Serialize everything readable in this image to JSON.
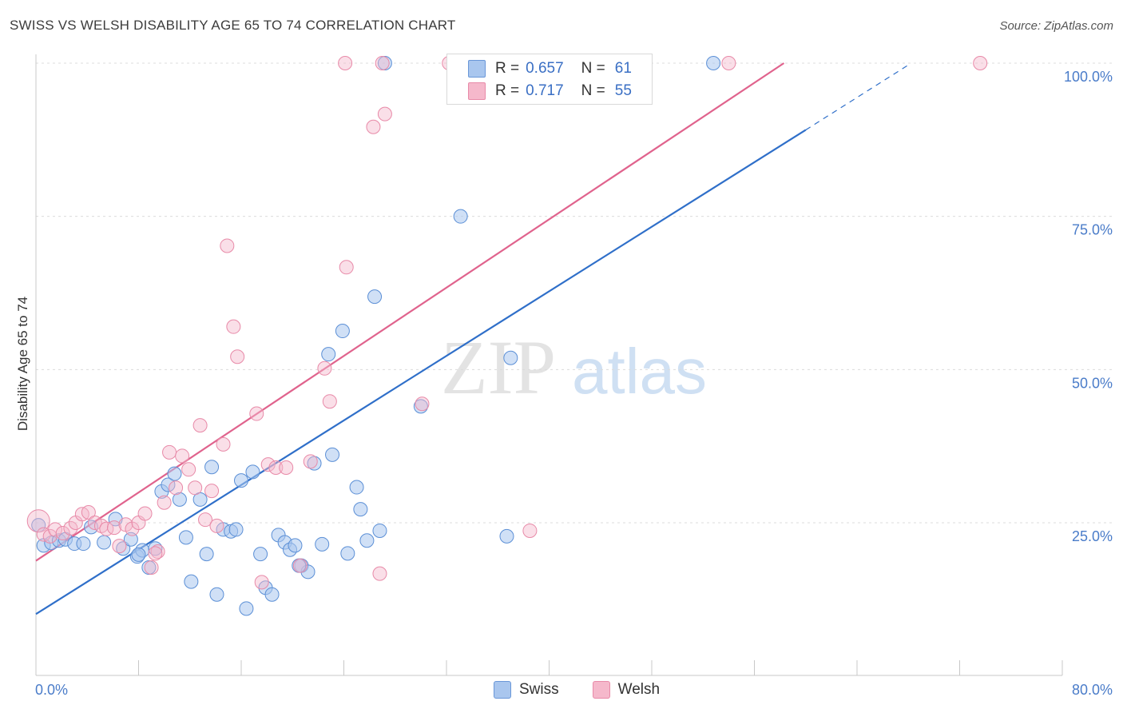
{
  "title": "SWISS VS WELSH DISABILITY AGE 65 TO 74 CORRELATION CHART",
  "source": "Source: ZipAtlas.com",
  "watermark": {
    "zip": "ZIP",
    "atlas": "atlas"
  },
  "legend_top": {
    "rows": [
      {
        "r_label": "R =",
        "r_value": "0.657",
        "n_label": "N =",
        "n_value": "61",
        "color": "#a9c6ee"
      },
      {
        "r_label": "R =",
        "r_value": "0.717",
        "n_label": "N =",
        "n_value": "55",
        "color": "#f5b8cb"
      }
    ]
  },
  "legend_bottom": {
    "swiss": "Swiss",
    "welsh": "Welsh"
  },
  "chart_data": {
    "type": "scatter",
    "title": "SWISS VS WELSH DISABILITY AGE 65 TO 74 CORRELATION CHART",
    "xlabel": "",
    "ylabel": "Disability Age 65 to 74",
    "xlim": [
      0,
      80
    ],
    "ylim": [
      0,
      105
    ],
    "x_tick_labels": [
      "0.0%",
      "80.0%"
    ],
    "y_tick_labels": [
      "25.0%",
      "50.0%",
      "75.0%",
      "100.0%"
    ],
    "y_ticks": [
      25,
      50,
      75,
      100
    ],
    "grid": true,
    "legend_position": "bottom",
    "colors": {
      "swiss_fill": "#a9c6ee",
      "swiss_line": "#2f6fc9",
      "welsh_fill": "#f5b8cb",
      "welsh_line": "#e0638d"
    },
    "series": [
      {
        "name": "Swiss",
        "trend": {
          "x1": 0,
          "y1": 10.1,
          "x2": 60,
          "y2": 89.1,
          "dash_to_x": 68,
          "dash_to_y": 99.7
        },
        "points": [
          [
            0.2,
            24.6
          ],
          [
            0.6,
            21.3
          ],
          [
            1.2,
            21.7
          ],
          [
            1.8,
            22.1
          ],
          [
            2.3,
            22.3
          ],
          [
            3.0,
            21.6
          ],
          [
            3.7,
            21.6
          ],
          [
            4.3,
            24.3
          ],
          [
            5.3,
            21.8
          ],
          [
            6.2,
            25.6
          ],
          [
            6.8,
            20.8
          ],
          [
            7.4,
            22.3
          ],
          [
            7.9,
            19.5
          ],
          [
            8.3,
            20.5
          ],
          [
            8.8,
            17.7
          ],
          [
            9.3,
            20.8
          ],
          [
            9.8,
            30.1
          ],
          [
            10.3,
            31.2
          ],
          [
            10.8,
            33.0
          ],
          [
            11.2,
            28.8
          ],
          [
            11.7,
            22.6
          ],
          [
            12.1,
            15.4
          ],
          [
            12.8,
            28.8
          ],
          [
            13.3,
            19.9
          ],
          [
            13.7,
            34.1
          ],
          [
            14.1,
            13.3
          ],
          [
            14.6,
            23.9
          ],
          [
            15.2,
            23.6
          ],
          [
            15.6,
            23.9
          ],
          [
            16.0,
            31.9
          ],
          [
            16.4,
            11.0
          ],
          [
            16.9,
            33.3
          ],
          [
            17.5,
            19.9
          ],
          [
            17.9,
            14.4
          ],
          [
            18.4,
            13.3
          ],
          [
            18.9,
            23.0
          ],
          [
            19.4,
            21.8
          ],
          [
            19.8,
            20.6
          ],
          [
            20.2,
            21.3
          ],
          [
            20.7,
            18.0
          ],
          [
            21.2,
            17.0
          ],
          [
            21.7,
            34.7
          ],
          [
            22.3,
            21.5
          ],
          [
            22.8,
            52.5
          ],
          [
            23.1,
            36.1
          ],
          [
            23.9,
            56.3
          ],
          [
            24.3,
            20.0
          ],
          [
            25.0,
            30.8
          ],
          [
            25.3,
            27.2
          ],
          [
            25.8,
            22.1
          ],
          [
            26.4,
            61.9
          ],
          [
            26.8,
            23.7
          ],
          [
            27.2,
            100.0
          ],
          [
            30.0,
            44.0
          ],
          [
            33.1,
            75.0
          ],
          [
            36.7,
            22.8
          ],
          [
            37.0,
            51.9
          ],
          [
            36.0,
            100.0
          ],
          [
            52.8,
            100.0
          ],
          [
            8.0,
            19.8
          ],
          [
            20.5,
            18.0
          ]
        ]
      },
      {
        "name": "Welsh",
        "trend": {
          "x1": 0,
          "y1": 18.8,
          "x2": 58.3,
          "y2": 100.0
        },
        "points": [
          [
            0.2,
            25.3
          ],
          [
            0.6,
            23.1
          ],
          [
            1.1,
            22.8
          ],
          [
            1.5,
            23.9
          ],
          [
            2.1,
            23.3
          ],
          [
            2.7,
            24.1
          ],
          [
            3.1,
            25.0
          ],
          [
            3.6,
            26.4
          ],
          [
            4.1,
            26.7
          ],
          [
            4.6,
            25.0
          ],
          [
            5.1,
            24.5
          ],
          [
            5.5,
            24.0
          ],
          [
            6.1,
            24.2
          ],
          [
            6.5,
            21.2
          ],
          [
            7.0,
            24.7
          ],
          [
            7.5,
            24.0
          ],
          [
            8.0,
            25.0
          ],
          [
            8.5,
            26.5
          ],
          [
            9.0,
            17.7
          ],
          [
            9.5,
            20.3
          ],
          [
            10.0,
            28.3
          ],
          [
            10.4,
            36.5
          ],
          [
            10.9,
            30.7
          ],
          [
            11.4,
            35.9
          ],
          [
            11.9,
            33.7
          ],
          [
            12.4,
            30.7
          ],
          [
            12.8,
            40.9
          ],
          [
            13.2,
            25.5
          ],
          [
            13.7,
            30.2
          ],
          [
            14.1,
            24.5
          ],
          [
            14.6,
            37.8
          ],
          [
            14.9,
            70.2
          ],
          [
            15.4,
            57.0
          ],
          [
            15.7,
            52.1
          ],
          [
            17.2,
            42.8
          ],
          [
            17.6,
            15.3
          ],
          [
            18.1,
            34.5
          ],
          [
            18.7,
            34.0
          ],
          [
            19.5,
            34.0
          ],
          [
            20.6,
            18.0
          ],
          [
            21.4,
            35.0
          ],
          [
            22.5,
            50.2
          ],
          [
            22.9,
            44.8
          ],
          [
            24.2,
            66.7
          ],
          [
            26.3,
            89.6
          ],
          [
            27.2,
            91.7
          ],
          [
            26.8,
            16.7
          ],
          [
            30.1,
            44.4
          ],
          [
            38.5,
            23.7
          ],
          [
            24.1,
            100.0
          ],
          [
            27.0,
            100.0
          ],
          [
            32.2,
            100.0
          ],
          [
            54.0,
            100.0
          ],
          [
            73.6,
            100.0
          ],
          [
            9.3,
            20.0
          ]
        ]
      }
    ]
  }
}
